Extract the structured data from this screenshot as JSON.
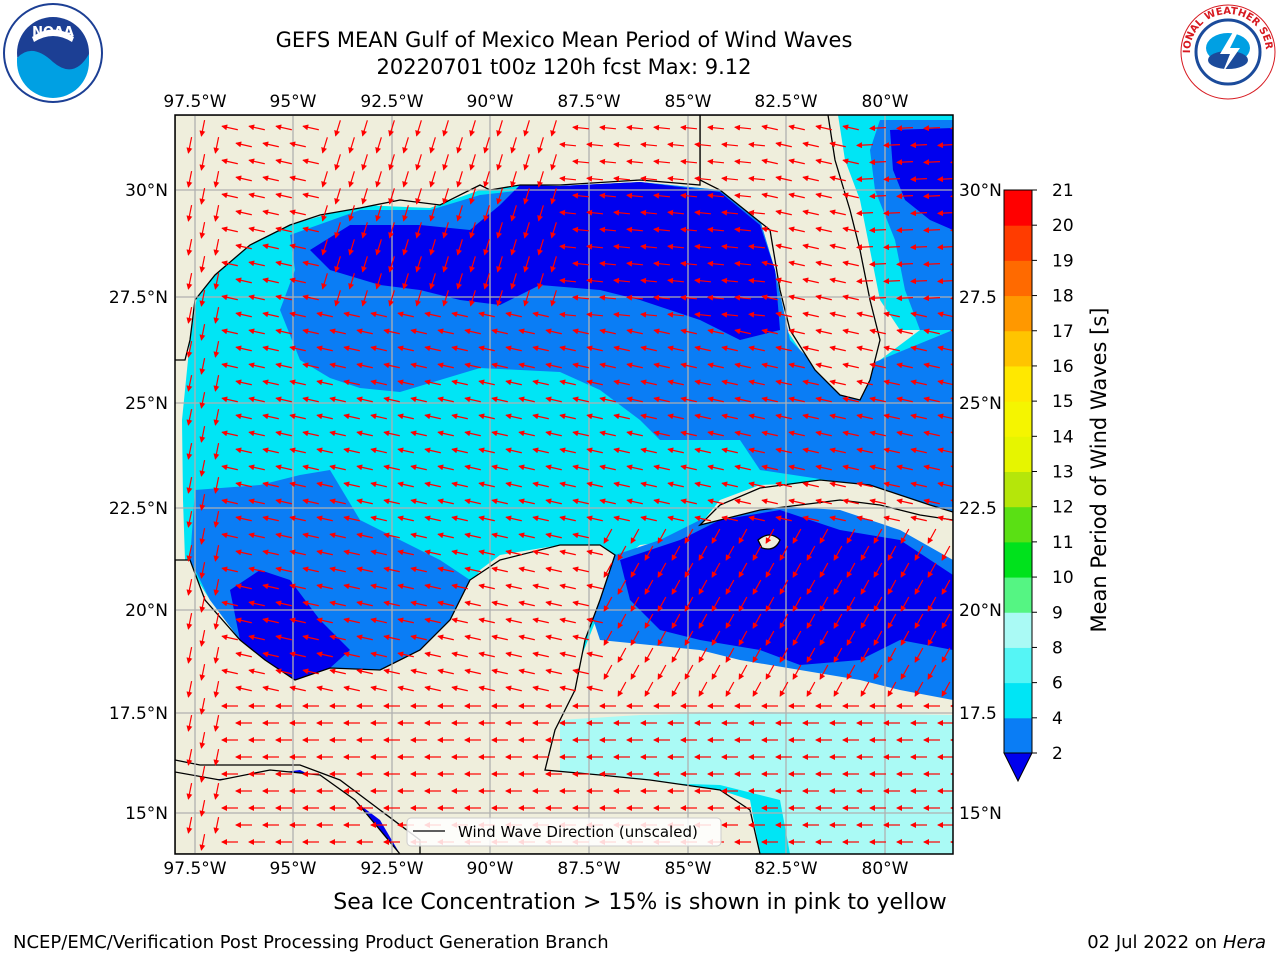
{
  "title_line1": "GEFS MEAN Gulf of Mexico Mean Period of Wind Waves",
  "title_line2": "20220701 t00z 120h fcst   Max: 9.12",
  "lon_ticks": [
    "97.5°W",
    "95°W",
    "92.5°W",
    "90°W",
    "87.5°W",
    "85°W",
    "82.5°W",
    "80°W"
  ],
  "lat_ticks_left": [
    "30°N",
    "27.5°N",
    "25°N",
    "22.5°N",
    "20°N",
    "17.5°N",
    "15°N"
  ],
  "lat_ticks_right": [
    "30°N",
    "27.5",
    "25°N",
    "22.5",
    "20°N",
    "17.5",
    "15°N"
  ],
  "legend_label": "Wind Wave Direction (unscaled)",
  "colorbar": {
    "label": "Mean Period of Wind Waves [s]",
    "ticks": [
      "2",
      "4",
      "6",
      "8",
      "9",
      "10",
      "11",
      "12",
      "13",
      "14",
      "15",
      "16",
      "17",
      "18",
      "19",
      "20",
      "21"
    ],
    "colors": [
      "#0a7df5",
      "#00e5f5",
      "#55f5f5",
      "#aafaf5",
      "#55f583",
      "#00e21c",
      "#5ae014",
      "#b5e60a",
      "#e6f500",
      "#f5f500",
      "#ffe800",
      "#ffc400",
      "#ff9800",
      "#ff6a00",
      "#ff3c00",
      "#ff0000"
    ],
    "under_color": "#0000ee"
  },
  "note": "Sea Ice Concentration > 15% is shown in pink to yellow",
  "footer_left": "NCEP/EMC/Verification Post Processing Product Generation Branch",
  "footer_date": "02 Jul 2022 on",
  "footer_host": "Hera",
  "colors": {
    "land": "#efeedc",
    "deep_blue": "#0000ee",
    "mid_blue": "#0a7df5",
    "cyan": "#00e5f5",
    "light_cyan": "#aafaf5",
    "arrow": "#ff0000",
    "grid": "#b0b0b0"
  },
  "logos": {
    "noaa": "NOAA",
    "nws": "NATIONAL WEATHER SERVICE"
  }
}
